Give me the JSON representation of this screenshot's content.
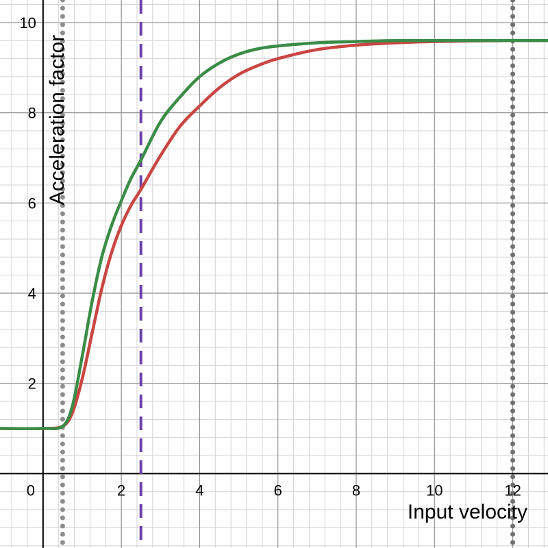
{
  "chart_data": {
    "type": "line",
    "xlabel": "Input velocity",
    "ylabel": "Acceleration factor",
    "xlim": [
      -1.1,
      12.9
    ],
    "ylim": [
      -1.65,
      10.5
    ],
    "x_ticks": [
      0,
      2,
      4,
      6,
      8,
      10,
      12
    ],
    "y_ticks": [
      2,
      4,
      6,
      8,
      10
    ],
    "grid": true,
    "series": [
      {
        "color": "#c94643",
        "x": [
          -1.1,
          0,
          0.5,
          0.75,
          1.0,
          1.25,
          1.5,
          1.75,
          2.0,
          2.25,
          2.5,
          3.0,
          3.5,
          4.0,
          4.5,
          5.0,
          5.5,
          6.0,
          7.0,
          8.0,
          9.0,
          10.0,
          12.0,
          12.9
        ],
        "y": [
          1.0,
          1.0,
          1.05,
          1.35,
          2.1,
          3.1,
          4.1,
          4.9,
          5.5,
          5.95,
          6.3,
          7.05,
          7.7,
          8.15,
          8.55,
          8.85,
          9.05,
          9.2,
          9.4,
          9.5,
          9.55,
          9.58,
          9.6,
          9.6
        ]
      },
      {
        "color": "#3a8c46",
        "x": [
          -1.1,
          0,
          0.5,
          0.75,
          1.0,
          1.25,
          1.5,
          1.75,
          2.0,
          2.25,
          2.5,
          3.0,
          3.5,
          4.0,
          4.5,
          5.0,
          5.5,
          6.0,
          7.0,
          8.0,
          9.0,
          10.0,
          12.0,
          12.9
        ],
        "y": [
          1.0,
          1.0,
          1.05,
          1.5,
          2.6,
          3.8,
          4.8,
          5.5,
          6.05,
          6.55,
          6.95,
          7.8,
          8.35,
          8.8,
          9.1,
          9.3,
          9.42,
          9.48,
          9.55,
          9.58,
          9.6,
          9.6,
          9.6,
          9.6
        ]
      }
    ],
    "vertical_lines": [
      {
        "x": 0.5,
        "style": "dotted",
        "color": "#8c8c8c"
      },
      {
        "x": 2.5,
        "style": "dashed",
        "color": "#6a42a8"
      },
      {
        "x": 12.0,
        "style": "dotted",
        "color": "#707070"
      }
    ]
  }
}
